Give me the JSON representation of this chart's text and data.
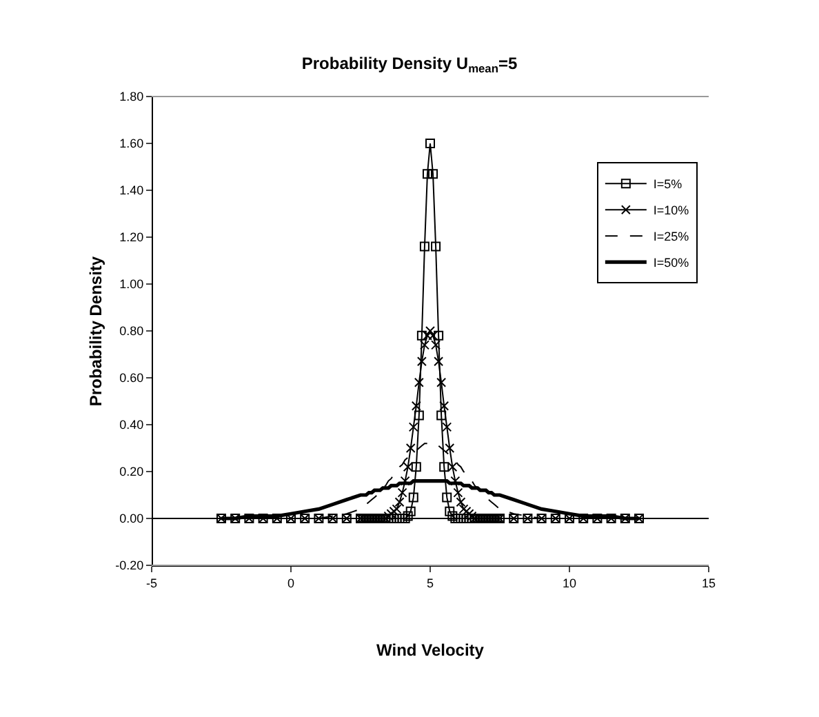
{
  "chart_data": {
    "type": "line",
    "title": "Probability Density U$_{mean}$=5",
    "xlabel": "Wind Velocity",
    "ylabel": "Probability Density",
    "x": [
      -2.5,
      -2,
      -1.5,
      -1,
      -0.5,
      0,
      0.5,
      1,
      1.5,
      2,
      2.5,
      2.6,
      2.7,
      2.8,
      2.9,
      3,
      3.1,
      3.2,
      3.3,
      3.4,
      3.5,
      3.6,
      3.7,
      3.8,
      3.9,
      4,
      4.1,
      4.2,
      4.3,
      4.4,
      4.5,
      4.6,
      4.7,
      4.8,
      4.9,
      5,
      5.1,
      5.2,
      5.3,
      5.4,
      5.5,
      5.6,
      5.7,
      5.8,
      5.9,
      6,
      6.1,
      6.2,
      6.3,
      6.4,
      6.5,
      6.6,
      6.7,
      6.8,
      6.9,
      7,
      7.1,
      7.2,
      7.3,
      7.4,
      7.5,
      8,
      8.5,
      9,
      9.5,
      10,
      10.5,
      11,
      11.5,
      12,
      12.5
    ],
    "series": [
      {
        "name": "I=5%",
        "color": "#000000",
        "marker": "square",
        "line_style": "solid",
        "values": [
          0,
          0,
          0,
          0,
          0,
          0,
          0,
          0,
          0,
          0,
          0,
          0,
          0,
          0,
          0,
          0,
          0,
          0,
          0,
          0,
          0,
          0,
          0,
          0,
          0,
          0,
          0,
          0.01,
          0.03,
          0.09,
          0.22,
          0.44,
          0.78,
          1.16,
          1.47,
          1.6,
          1.47,
          1.16,
          0.78,
          0.44,
          0.22,
          0.09,
          0.03,
          0.01,
          0,
          0,
          0,
          0,
          0,
          0,
          0,
          0,
          0,
          0,
          0,
          0,
          0,
          0,
          0,
          0,
          0,
          0,
          0,
          0,
          0,
          0,
          0,
          0,
          0,
          0,
          0
        ]
      },
      {
        "name": "I=10%",
        "color": "#000000",
        "marker": "cross",
        "line_style": "solid",
        "values": [
          0,
          0,
          0,
          0,
          0,
          0,
          0,
          0,
          0,
          0,
          0,
          0,
          0,
          0,
          0,
          0,
          0,
          0,
          0,
          0,
          0.01,
          0.02,
          0.03,
          0.04,
          0.07,
          0.11,
          0.16,
          0.22,
          0.3,
          0.39,
          0.48,
          0.58,
          0.67,
          0.74,
          0.78,
          0.8,
          0.78,
          0.74,
          0.67,
          0.58,
          0.48,
          0.39,
          0.3,
          0.22,
          0.16,
          0.11,
          0.07,
          0.04,
          0.03,
          0.02,
          0.01,
          0,
          0,
          0,
          0,
          0,
          0,
          0,
          0,
          0,
          0,
          0,
          0,
          0,
          0,
          0,
          0,
          0,
          0,
          0,
          0
        ]
      },
      {
        "name": "I=25%",
        "color": "#000000",
        "marker": "none",
        "line_style": "dashed",
        "values": [
          0,
          0,
          0,
          0,
          0,
          0,
          0,
          0,
          0.01,
          0.02,
          0.04,
          0.05,
          0.06,
          0.07,
          0.08,
          0.09,
          0.1,
          0.11,
          0.13,
          0.14,
          0.16,
          0.17,
          0.19,
          0.2,
          0.22,
          0.23,
          0.25,
          0.26,
          0.27,
          0.28,
          0.29,
          0.3,
          0.31,
          0.32,
          0.32,
          0.32,
          0.32,
          0.32,
          0.31,
          0.3,
          0.29,
          0.28,
          0.27,
          0.26,
          0.25,
          0.23,
          0.22,
          0.2,
          0.19,
          0.17,
          0.16,
          0.14,
          0.13,
          0.11,
          0.1,
          0.09,
          0.08,
          0.07,
          0.06,
          0.05,
          0.04,
          0.02,
          0.01,
          0,
          0,
          0,
          0,
          0,
          0,
          0,
          0
        ]
      },
      {
        "name": "I=50%",
        "color": "#000000",
        "marker": "none",
        "line_style": "solid",
        "values": [
          0,
          0,
          0.01,
          0.01,
          0.01,
          0.02,
          0.03,
          0.04,
          0.06,
          0.08,
          0.1,
          0.1,
          0.1,
          0.11,
          0.11,
          0.12,
          0.12,
          0.12,
          0.13,
          0.13,
          0.13,
          0.14,
          0.14,
          0.14,
          0.15,
          0.15,
          0.15,
          0.15,
          0.15,
          0.16,
          0.16,
          0.16,
          0.16,
          0.16,
          0.16,
          0.16,
          0.16,
          0.16,
          0.16,
          0.16,
          0.16,
          0.16,
          0.15,
          0.15,
          0.15,
          0.15,
          0.15,
          0.14,
          0.14,
          0.14,
          0.13,
          0.13,
          0.13,
          0.12,
          0.12,
          0.12,
          0.11,
          0.11,
          0.1,
          0.1,
          0.1,
          0.08,
          0.06,
          0.04,
          0.03,
          0.02,
          0.01,
          0.01,
          0.01,
          0,
          0
        ]
      }
    ],
    "xlim": [
      -5,
      15
    ],
    "xticks": [
      -5,
      0,
      5,
      10,
      15
    ],
    "ylim": [
      -0.2,
      1.8
    ],
    "yticks": [
      {
        "value": -0.2,
        "label": "-0.20"
      },
      {
        "value": 0,
        "label": "0.00"
      },
      {
        "value": 0.2,
        "label": "0.20"
      },
      {
        "value": 0.4,
        "label": "0.40"
      },
      {
        "value": 0.6,
        "label": "0.60"
      },
      {
        "value": 0.8,
        "label": "0.80"
      },
      {
        "value": 1,
        "label": "1.00"
      },
      {
        "value": 1.2,
        "label": "1.20"
      },
      {
        "value": 1.4,
        "label": "1.40"
      },
      {
        "value": 1.6,
        "label": "1.60"
      },
      {
        "value": 1.8,
        "label": "1.80"
      }
    ],
    "legend": "top right"
  }
}
